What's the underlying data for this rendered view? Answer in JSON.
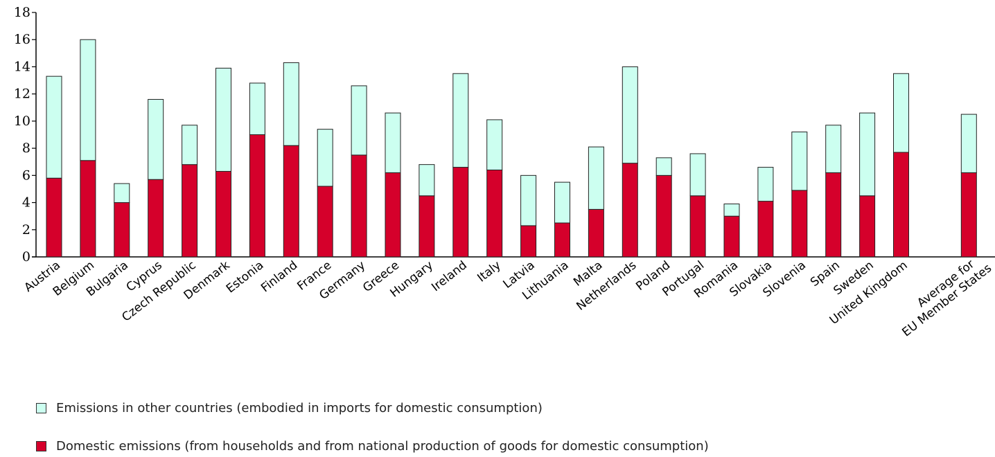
{
  "chart_data": {
    "type": "bar",
    "stacked": true,
    "categories": [
      "Austria",
      "Belgium",
      "Bulgaria",
      "Cyprus",
      "Czech Republic",
      "Denmark",
      "Estonia",
      "Finland",
      "France",
      "Germany",
      "Greece",
      "Hungary",
      "Ireland",
      "Italy",
      "Latvia",
      "Lithuania",
      "Malta",
      "Netherlands",
      "Poland",
      "Portugal",
      "Romania",
      "Slovakia",
      "Slovenia",
      "Spain",
      "Sweden",
      "United Kingdom",
      "",
      "Average for EU Member States"
    ],
    "series": [
      {
        "name": "Domestic emissions (from households and from national production of goods for domestic consumption)",
        "color": "#d5002b",
        "values": [
          5.8,
          7.1,
          4.0,
          5.7,
          6.8,
          6.3,
          9.0,
          8.2,
          5.2,
          7.5,
          6.2,
          4.5,
          6.6,
          6.4,
          2.3,
          2.5,
          3.5,
          6.9,
          6.0,
          4.5,
          3.0,
          4.1,
          4.9,
          6.2,
          4.5,
          7.7,
          null,
          6.2
        ]
      },
      {
        "name": "Emissions in other countries (embodied in imports for domestic consumption)",
        "color": "#ccfff0",
        "values": [
          7.5,
          8.9,
          1.4,
          5.9,
          2.9,
          7.6,
          3.8,
          6.1,
          4.2,
          5.1,
          4.4,
          2.3,
          6.9,
          3.7,
          3.7,
          3.0,
          4.6,
          7.1,
          1.3,
          3.1,
          0.9,
          2.5,
          4.3,
          3.5,
          6.1,
          5.8,
          null,
          4.3
        ]
      }
    ],
    "ylim": [
      0,
      18
    ],
    "yticks": [
      "0",
      "2",
      "4",
      "6",
      "8",
      "10",
      "12",
      "14",
      "16",
      "18"
    ],
    "xlabel": "",
    "ylabel": "",
    "legend_position": "bottom-left",
    "grid": false
  },
  "legend": {
    "imports_label": "Emissions in other countries (embodied in imports for domestic consumption)",
    "domestic_label": "Domestic emissions (from households and from national production of goods for domestic consumption)"
  }
}
